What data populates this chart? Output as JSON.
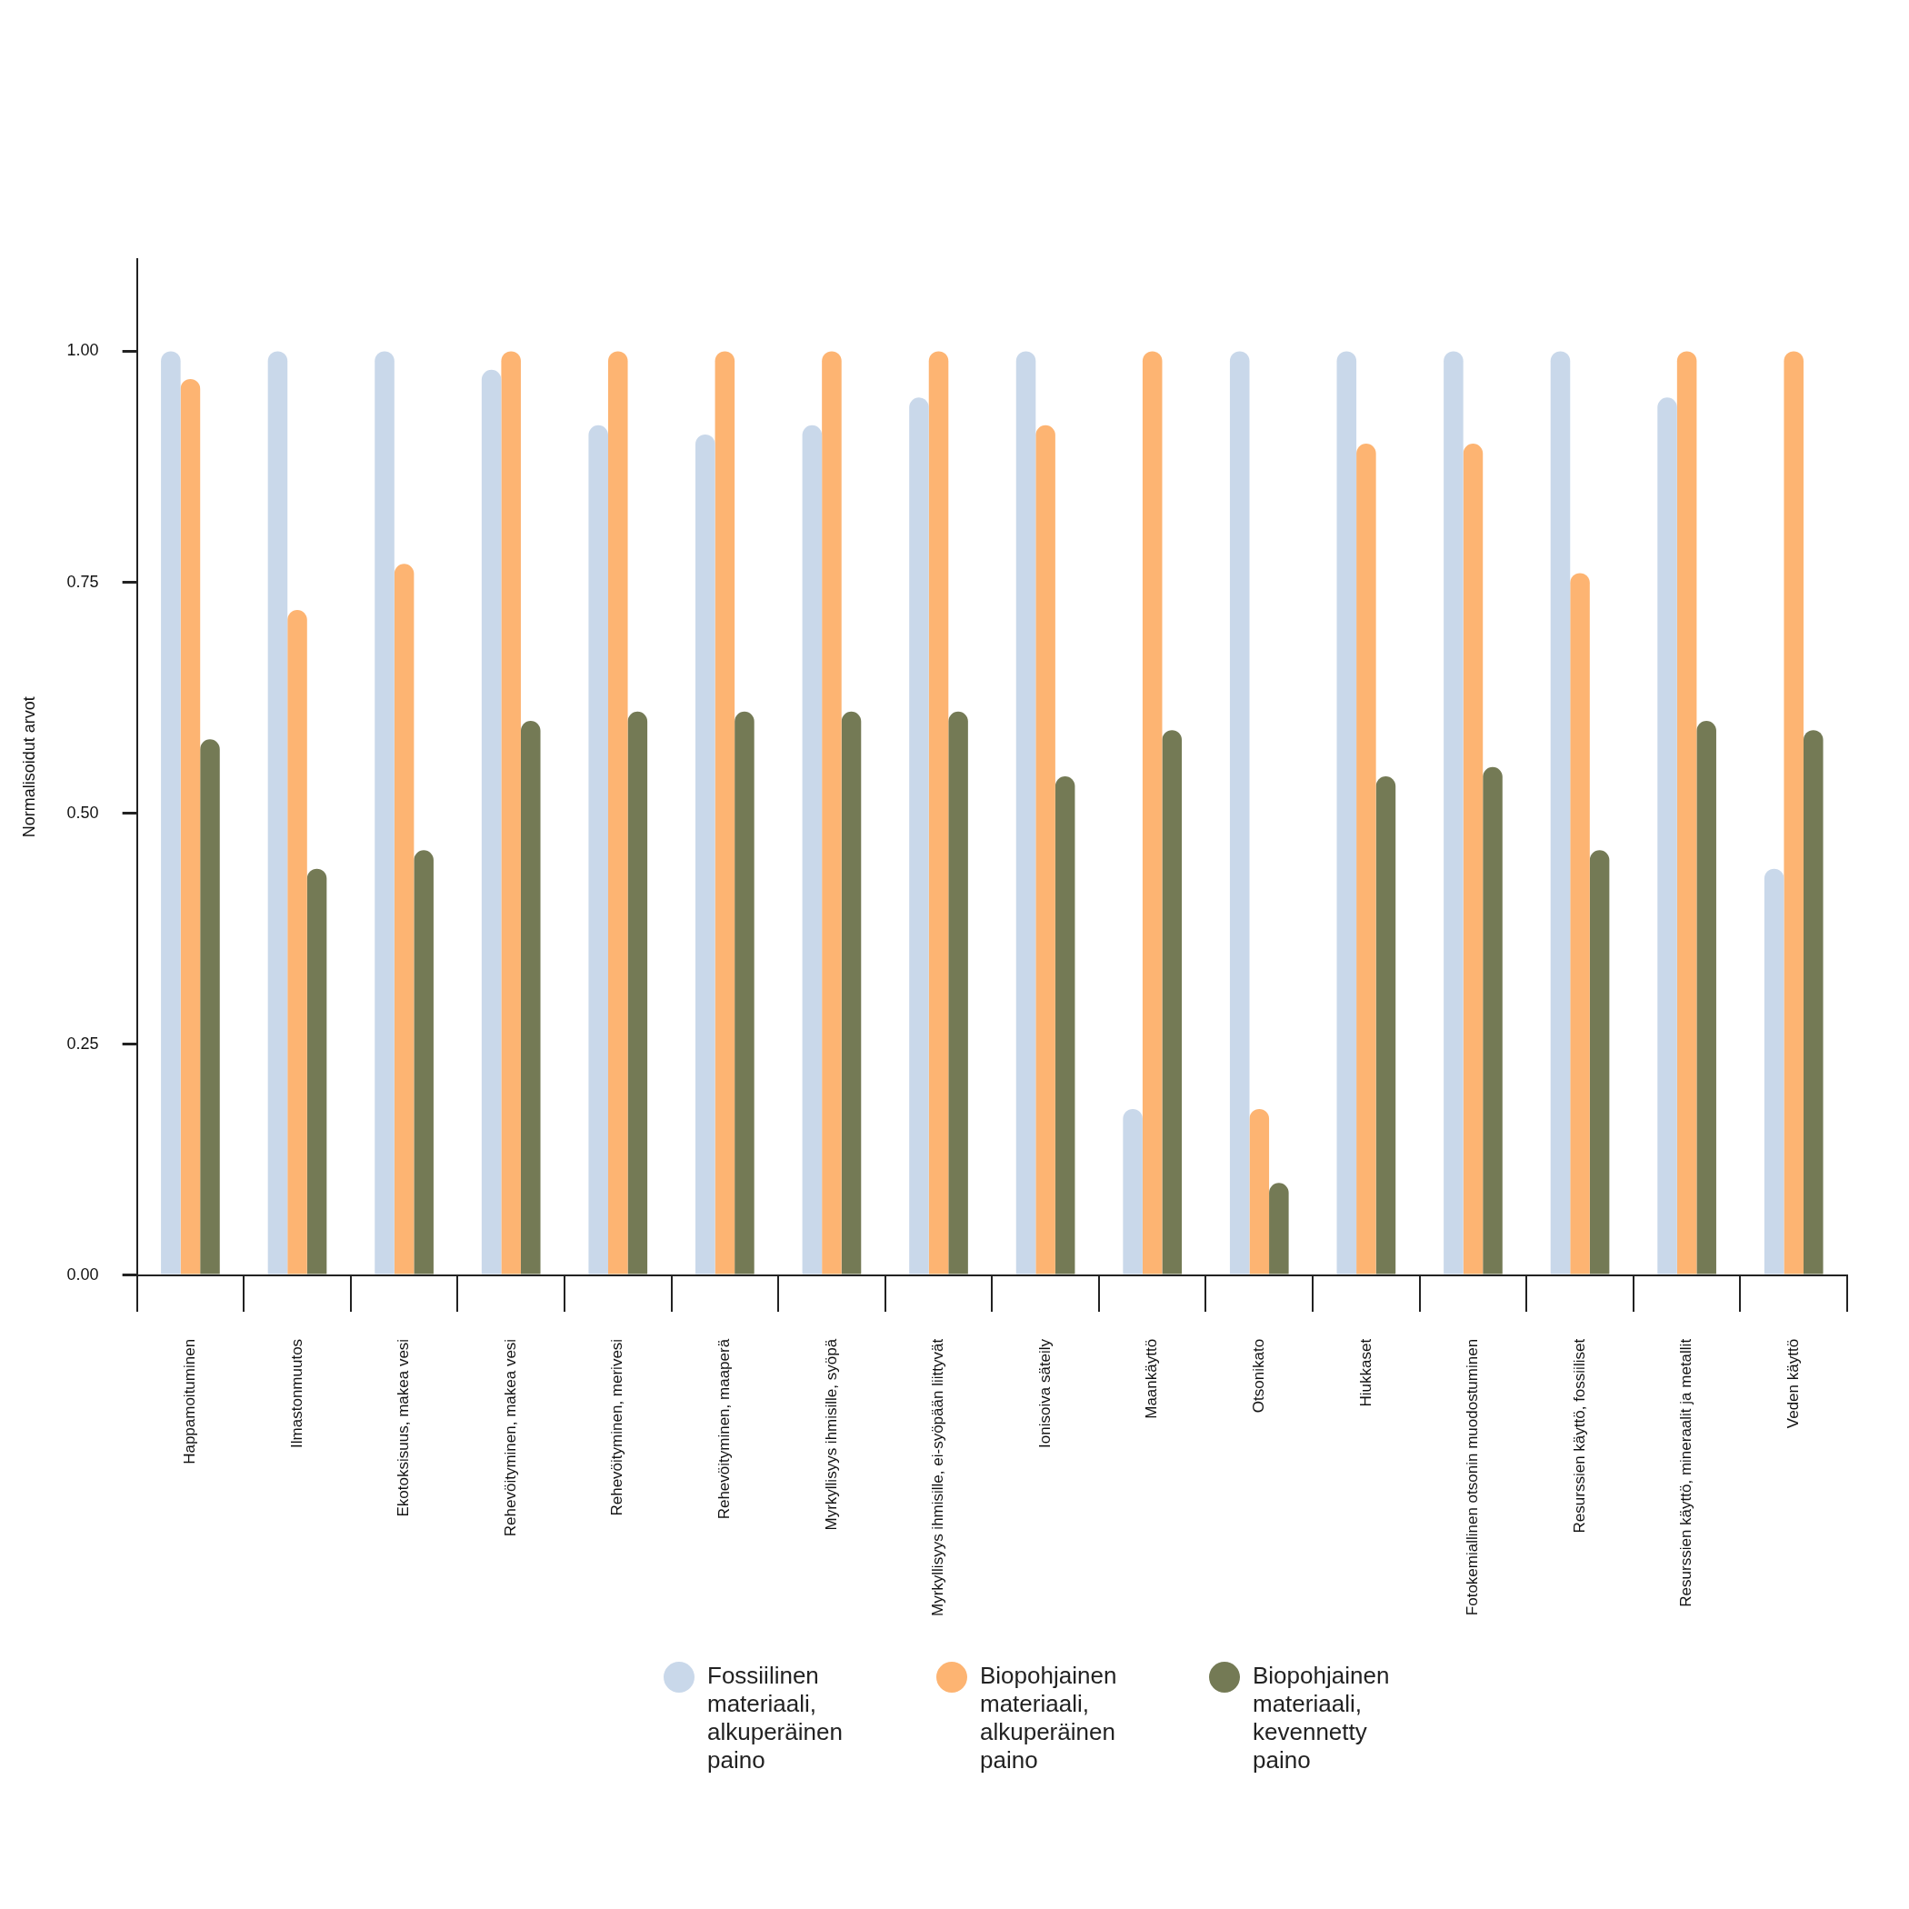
{
  "chart_data": {
    "type": "bar",
    "ylabel": "Normalisoidut arvot",
    "categories": [
      "Happamoituminen",
      "Ilmastonmuutos",
      "Ekotoksisuus, makea vesi",
      "Rehevöityminen, makea vesi",
      "Rehevöityminen, merivesi",
      "Rehevöityminen, maaperä",
      "Myrkyllisyys ihmisille, syöpä",
      "Myrkyllisyys ihmisille, ei-syöpään liittyvät",
      "Ionisoiva säteily",
      "Maankäyttö",
      "Otsonikato",
      "Hiukkaset",
      "Fotokemiallinen otsonin muodostuminen",
      "Resurssien käyttö, fossiiliset",
      "Resurssien käyttö, mineraalit ja metallit",
      "Veden käyttö"
    ],
    "series": [
      {
        "name": "Fossiilinen materiaali, alkuperäinen paino",
        "color": "#c9d8ea",
        "values": [
          1.0,
          1.0,
          1.0,
          0.98,
          0.92,
          0.91,
          0.92,
          0.95,
          1.0,
          0.18,
          1.0,
          1.0,
          1.0,
          1.0,
          0.95,
          0.44
        ]
      },
      {
        "name": "Biopohjainen materiaali, alkuperäinen paino",
        "color": "#fdb472",
        "values": [
          0.97,
          0.72,
          0.77,
          1.0,
          1.0,
          1.0,
          1.0,
          1.0,
          0.92,
          1.0,
          0.18,
          0.9,
          0.9,
          0.76,
          1.0,
          1.0
        ]
      },
      {
        "name": "Biopohjainen materiaali, kevennetty paino",
        "color": "#747a55",
        "values": [
          0.58,
          0.44,
          0.46,
          0.6,
          0.61,
          0.61,
          0.61,
          0.61,
          0.54,
          0.59,
          0.1,
          0.54,
          0.55,
          0.46,
          0.6,
          0.59
        ]
      }
    ],
    "ylim": [
      0,
      1.1
    ],
    "yticks": [
      {
        "value": 0,
        "label": "0.00"
      },
      {
        "value": 0.25,
        "label": "0.25"
      },
      {
        "value": 0.5,
        "label": "0.50"
      },
      {
        "value": 0.75,
        "label": "0.75"
      },
      {
        "value": 1,
        "label": "1.00"
      }
    ],
    "grid": false,
    "legend": "bottom"
  }
}
